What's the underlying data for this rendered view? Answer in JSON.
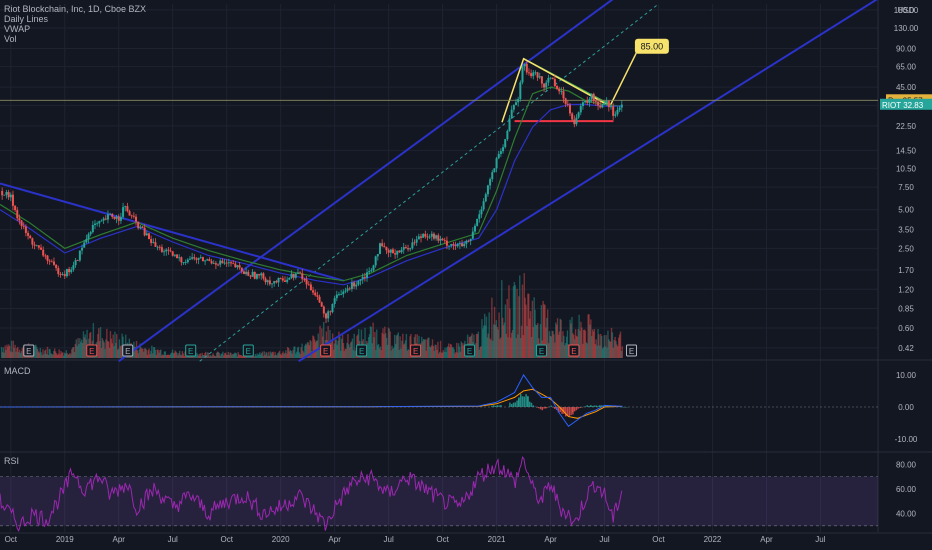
{
  "chart_data": {
    "type": "candlestick",
    "legend": {
      "title": "Riot Blockchain, Inc, 1D, Cboe BZX",
      "lines": [
        "Daily Lines",
        "VWAP",
        "Vol"
      ]
    },
    "price_axis": {
      "scale": "log",
      "currency": "USD",
      "ticks": [
        "180.00",
        "130.00",
        "90.00",
        "65.00",
        "45.00",
        "32.50",
        "22.50",
        "14.50",
        "10.50",
        "7.50",
        "5.00",
        "3.50",
        "2.50",
        "1.70",
        "1.20",
        "0.85",
        "0.60",
        "0.42"
      ],
      "tick_values": [
        180,
        130,
        90,
        65,
        45,
        32.5,
        22.5,
        14.5,
        10.5,
        7.5,
        5,
        3.5,
        2.5,
        1.7,
        1.2,
        0.85,
        0.6,
        0.42
      ],
      "range": [
        0.35,
        200
      ]
    },
    "time_axis": {
      "labels": [
        "Oct",
        "2019",
        "Apr",
        "Jul",
        "Oct",
        "2020",
        "Apr",
        "Jul",
        "Oct",
        "2021",
        "Apr",
        "Jul",
        "Oct",
        "2022",
        "Apr",
        "Jul"
      ],
      "label_months": [
        0,
        3,
        6,
        9,
        12,
        15,
        18,
        21,
        24,
        27,
        30,
        33,
        36,
        39,
        42,
        45
      ],
      "start": "2018-10",
      "range_months": [
        -0.6,
        48.2
      ],
      "last_bar_month": 34.0
    },
    "price_badges": {
      "pre": {
        "label": "Pre",
        "value": "35.57"
      },
      "last": {
        "label": "RIOT",
        "value": "32.83"
      }
    },
    "series": [
      {
        "name": "RIOT",
        "close": [
          [
            -0.6,
            7.0
          ],
          [
            0.0,
            6.2
          ],
          [
            0.5,
            4.0
          ],
          [
            1.0,
            3.0
          ],
          [
            1.5,
            2.5
          ],
          [
            2.0,
            2.1
          ],
          [
            2.5,
            1.7
          ],
          [
            3.0,
            1.6
          ],
          [
            3.5,
            1.8
          ],
          [
            4.0,
            2.6
          ],
          [
            4.5,
            3.7
          ],
          [
            5.0,
            3.9
          ],
          [
            5.5,
            4.5
          ],
          [
            6.0,
            4.3
          ],
          [
            6.3,
            5.3
          ],
          [
            6.6,
            4.6
          ],
          [
            7.0,
            3.9
          ],
          [
            7.5,
            3.2
          ],
          [
            8.0,
            2.6
          ],
          [
            8.5,
            2.4
          ],
          [
            9.0,
            2.2
          ],
          [
            9.5,
            2.0
          ],
          [
            10.0,
            2.1
          ],
          [
            11.0,
            2.0
          ],
          [
            12.0,
            1.9
          ],
          [
            12.5,
            1.8
          ],
          [
            13.0,
            1.6
          ],
          [
            14.0,
            1.5
          ],
          [
            14.5,
            1.35
          ],
          [
            15.0,
            1.4
          ],
          [
            16.0,
            1.6
          ],
          [
            16.5,
            1.3
          ],
          [
            17.0,
            1.1
          ],
          [
            17.5,
            0.7
          ],
          [
            18.0,
            1.0
          ],
          [
            19.0,
            1.3
          ],
          [
            20.0,
            1.7
          ],
          [
            20.5,
            2.6
          ],
          [
            21.0,
            2.3
          ],
          [
            22.0,
            2.5
          ],
          [
            23.0,
            3.3
          ],
          [
            23.5,
            3.1
          ],
          [
            24.0,
            2.8
          ],
          [
            25.0,
            2.6
          ],
          [
            25.5,
            2.8
          ],
          [
            26.0,
            4.5
          ],
          [
            26.5,
            7.5
          ],
          [
            27.0,
            12.0
          ],
          [
            27.5,
            17.0
          ],
          [
            27.8,
            30.0
          ],
          [
            28.2,
            38.0
          ],
          [
            28.5,
            70.0
          ],
          [
            28.8,
            55.0
          ],
          [
            29.2,
            60.0
          ],
          [
            29.6,
            45.0
          ],
          [
            30.0,
            55.0
          ],
          [
            30.5,
            42.0
          ],
          [
            31.0,
            32.0
          ],
          [
            31.3,
            24.0
          ],
          [
            31.8,
            33.0
          ],
          [
            32.3,
            38.0
          ],
          [
            32.7,
            32.0
          ],
          [
            33.1,
            36.0
          ],
          [
            33.5,
            28.0
          ],
          [
            34.0,
            32.8
          ]
        ]
      },
      {
        "name": "MA",
        "points": [
          [
            -0.6,
            5.5
          ],
          [
            1.0,
            4.0
          ],
          [
            3.0,
            2.5
          ],
          [
            5.0,
            3.2
          ],
          [
            7.0,
            4.0
          ],
          [
            9.0,
            3.0
          ],
          [
            11.0,
            2.4
          ],
          [
            13.0,
            2.0
          ],
          [
            15.0,
            1.7
          ],
          [
            17.0,
            1.5
          ],
          [
            18.5,
            1.4
          ],
          [
            20.0,
            1.6
          ],
          [
            22.0,
            2.2
          ],
          [
            24.0,
            2.7
          ],
          [
            26.0,
            3.3
          ],
          [
            27.0,
            7.0
          ],
          [
            28.0,
            18.0
          ],
          [
            29.0,
            40.0
          ],
          [
            30.0,
            45.0
          ],
          [
            31.0,
            42.0
          ],
          [
            32.0,
            35.0
          ],
          [
            33.0,
            33.0
          ],
          [
            34.0,
            32.0
          ]
        ]
      },
      {
        "name": "VWAP",
        "points": [
          [
            -0.6,
            5.0
          ],
          [
            1.0,
            3.6
          ],
          [
            3.0,
            2.3
          ],
          [
            5.0,
            3.0
          ],
          [
            7.0,
            3.7
          ],
          [
            9.0,
            2.8
          ],
          [
            11.0,
            2.2
          ],
          [
            13.0,
            1.9
          ],
          [
            15.0,
            1.6
          ],
          [
            17.0,
            1.4
          ],
          [
            18.5,
            1.3
          ],
          [
            20.0,
            1.5
          ],
          [
            22.0,
            2.0
          ],
          [
            24.0,
            2.5
          ],
          [
            26.0,
            3.0
          ],
          [
            27.0,
            5.0
          ],
          [
            28.0,
            12.0
          ],
          [
            29.0,
            22.0
          ],
          [
            30.0,
            30.0
          ],
          [
            31.0,
            33.0
          ],
          [
            32.0,
            33.0
          ],
          [
            33.0,
            32.0
          ],
          [
            34.0,
            32.0
          ]
        ]
      },
      {
        "name": "Vol",
        "values": [
          [
            0.0,
            0.2
          ],
          [
            1.5,
            0.15
          ],
          [
            3.0,
            0.1
          ],
          [
            4.5,
            0.4
          ],
          [
            6.0,
            0.3
          ],
          [
            7.5,
            0.15
          ],
          [
            9.0,
            0.1
          ],
          [
            10.5,
            0.08
          ],
          [
            12.0,
            0.07
          ],
          [
            13.5,
            0.06
          ],
          [
            15.0,
            0.1
          ],
          [
            16.5,
            0.2
          ],
          [
            17.5,
            0.45
          ],
          [
            18.5,
            0.25
          ],
          [
            20.0,
            0.4
          ],
          [
            21.5,
            0.3
          ],
          [
            23.0,
            0.25
          ],
          [
            24.5,
            0.15
          ],
          [
            26.0,
            0.35
          ],
          [
            27.0,
            0.9
          ],
          [
            27.8,
            0.8
          ],
          [
            28.5,
            1.0
          ],
          [
            29.2,
            0.7
          ],
          [
            30.0,
            0.55
          ],
          [
            31.0,
            0.45
          ],
          [
            32.0,
            0.5
          ],
          [
            33.0,
            0.35
          ],
          [
            34.0,
            0.3
          ]
        ]
      }
    ],
    "earnings_markers": [
      {
        "label": "E",
        "month": 1.0,
        "tone": "neutral"
      },
      {
        "label": "E",
        "month": 4.5,
        "tone": "negative"
      },
      {
        "label": "E",
        "month": 6.5,
        "tone": "neutral"
      },
      {
        "label": "E",
        "month": 10.0,
        "tone": "positive"
      },
      {
        "label": "E",
        "month": 13.2,
        "tone": "positive"
      },
      {
        "label": "E",
        "month": 17.5,
        "tone": "negative"
      },
      {
        "label": "E",
        "month": 19.5,
        "tone": "positive"
      },
      {
        "label": "E",
        "month": 22.5,
        "tone": "negative"
      },
      {
        "label": "E",
        "month": 25.5,
        "tone": "positive"
      },
      {
        "label": "E",
        "month": 29.5,
        "tone": "positive"
      },
      {
        "label": "E",
        "month": 31.3,
        "tone": "negative"
      },
      {
        "label": "E",
        "month": 34.5,
        "tone": "neutral"
      }
    ],
    "drawings": {
      "channel_upper": [
        [
          6.0,
          0.33
        ],
        [
          33.5,
          220.0
        ]
      ],
      "channel_mid": [
        [
          10.5,
          0.33
        ],
        [
          36.0,
          200.0
        ]
      ],
      "channel_lower": [
        [
          16.0,
          0.33
        ],
        [
          48.2,
          220.0
        ]
      ],
      "downtrend": [
        [
          -0.6,
          8.0
        ],
        [
          18.5,
          1.4
        ]
      ],
      "triangle_top": [
        [
          28.5,
          75.0
        ],
        [
          33.3,
          33.0
        ]
      ],
      "support": [
        [
          28.0,
          24.5
        ],
        [
          33.5,
          24.5
        ]
      ],
      "target_path": [
        [
          27.3,
          24.0
        ],
        [
          28.5,
          75.0
        ],
        [
          33.3,
          32.0
        ],
        [
          34.8,
          85.0
        ]
      ],
      "target_label": "85.00",
      "last_price_level": 35.57
    },
    "macd": {
      "title": "MACD",
      "ticks": [
        "10.00",
        "0.00",
        "-10.00"
      ],
      "tick_values": [
        10,
        0,
        -10
      ],
      "range": [
        -14,
        14
      ],
      "macd_line": [
        [
          -0.6,
          0.0
        ],
        [
          20.0,
          0.1
        ],
        [
          26.0,
          0.3
        ],
        [
          27.0,
          1.5
        ],
        [
          28.0,
          4.5
        ],
        [
          28.5,
          10.0
        ],
        [
          29.0,
          6.0
        ],
        [
          29.5,
          3.0
        ],
        [
          30.0,
          3.0
        ],
        [
          30.5,
          -2.0
        ],
        [
          31.0,
          -6.0
        ],
        [
          31.5,
          -4.0
        ],
        [
          32.0,
          -2.0
        ],
        [
          32.5,
          -1.0
        ],
        [
          33.0,
          0.5
        ],
        [
          34.0,
          0.2
        ]
      ],
      "signal_line": [
        [
          -0.6,
          0.0
        ],
        [
          20.0,
          0.1
        ],
        [
          26.0,
          0.2
        ],
        [
          27.0,
          1.0
        ],
        [
          28.0,
          3.0
        ],
        [
          28.5,
          5.0
        ],
        [
          29.0,
          5.5
        ],
        [
          29.5,
          4.0
        ],
        [
          30.0,
          2.5
        ],
        [
          30.5,
          0.0
        ],
        [
          31.0,
          -3.0
        ],
        [
          31.5,
          -3.5
        ],
        [
          32.0,
          -2.5
        ],
        [
          32.5,
          -1.5
        ],
        [
          33.0,
          0.0
        ],
        [
          34.0,
          0.2
        ]
      ],
      "histogram": [
        [
          27.0,
          0.5
        ],
        [
          28.0,
          1.5
        ],
        [
          28.5,
          5.0
        ],
        [
          29.0,
          0.5
        ],
        [
          29.5,
          -1.0
        ],
        [
          30.0,
          0.5
        ],
        [
          30.5,
          -2.0
        ],
        [
          31.0,
          -3.0
        ],
        [
          31.5,
          -0.5
        ],
        [
          32.0,
          0.5
        ],
        [
          32.5,
          0.5
        ],
        [
          33.0,
          0.5
        ],
        [
          34.0,
          0.0
        ]
      ]
    },
    "rsi": {
      "title": "RSI",
      "ticks": [
        "80.00",
        "60.00",
        "40.00"
      ],
      "tick_values": [
        80,
        60,
        40
      ],
      "band": [
        30,
        70
      ],
      "range": [
        25,
        90
      ],
      "values": [
        [
          -0.6,
          50
        ],
        [
          0.5,
          30
        ],
        [
          1.2,
          40
        ],
        [
          2.0,
          35
        ],
        [
          3.0,
          60
        ],
        [
          3.5,
          75
        ],
        [
          4.0,
          60
        ],
        [
          5.0,
          70
        ],
        [
          5.5,
          55
        ],
        [
          6.5,
          65
        ],
        [
          7.0,
          45
        ],
        [
          8.0,
          60
        ],
        [
          9.0,
          45
        ],
        [
          10.0,
          55
        ],
        [
          11.0,
          40
        ],
        [
          12.0,
          50
        ],
        [
          13.0,
          55
        ],
        [
          14.0,
          40
        ],
        [
          15.0,
          45
        ],
        [
          16.0,
          55
        ],
        [
          17.0,
          40
        ],
        [
          17.5,
          30
        ],
        [
          18.0,
          45
        ],
        [
          19.0,
          65
        ],
        [
          20.0,
          70
        ],
        [
          21.0,
          55
        ],
        [
          22.0,
          70
        ],
        [
          23.0,
          60
        ],
        [
          24.0,
          50
        ],
        [
          25.0,
          45
        ],
        [
          26.0,
          70
        ],
        [
          27.0,
          80
        ],
        [
          27.5,
          75
        ],
        [
          28.0,
          65
        ],
        [
          28.5,
          85
        ],
        [
          29.0,
          60
        ],
        [
          29.5,
          50
        ],
        [
          30.0,
          65
        ],
        [
          30.5,
          45
        ],
        [
          31.0,
          40
        ],
        [
          31.3,
          30
        ],
        [
          32.0,
          55
        ],
        [
          32.5,
          65
        ],
        [
          33.0,
          55
        ],
        [
          33.5,
          35
        ],
        [
          34.0,
          62
        ]
      ]
    }
  }
}
